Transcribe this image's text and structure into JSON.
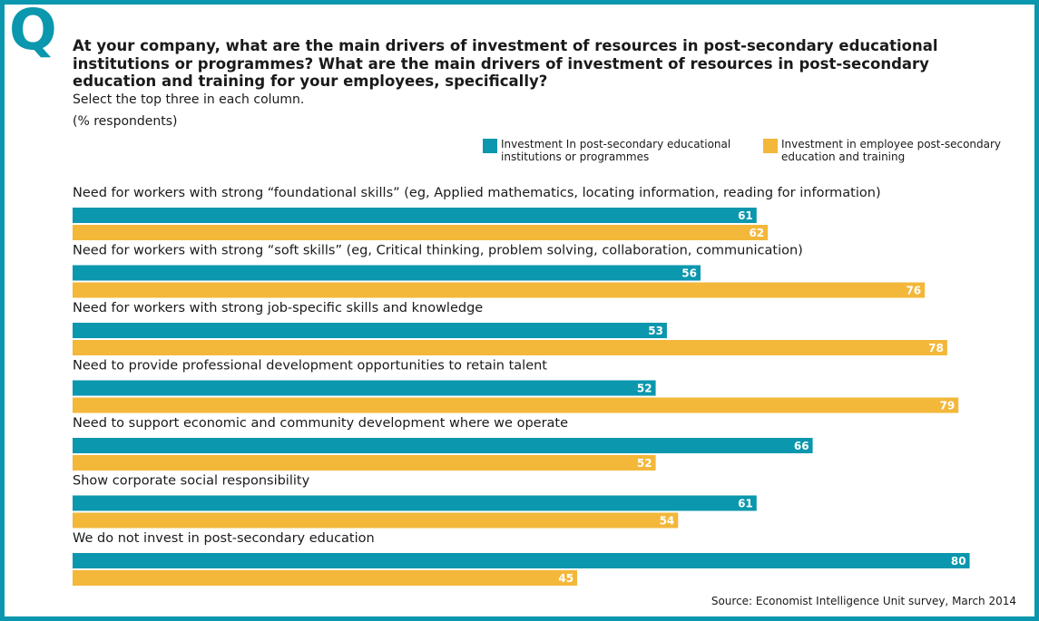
{
  "header": {
    "q_mark": "Q",
    "question": "At your company, what are the main drivers of investment of resources in post-secondary educational institutions or programmes? What are the main drivers of investment of resources in post-secondary education and training for your employees, specifically?",
    "instruction": "Select the top three in each column.",
    "unit": "(% respondents)"
  },
  "colors": {
    "frame": "#0b97ad",
    "series1": "#0b97ad",
    "series2": "#f3b73a"
  },
  "source": "Source: Economist Intelligence Unit survey, March 2014",
  "chart_data": {
    "type": "bar",
    "orientation": "horizontal",
    "categories": [
      "Need for workers with strong “foundational skills” (eg, Applied mathematics, locating information, reading for information)",
      "Need for workers with strong “soft skills” (eg, Critical thinking, problem solving, collaboration, communication)",
      "Need for workers with strong job-specific skills and knowledge",
      "Need to provide professional development opportunities to retain talent",
      "Need to support economic and community development where we operate",
      "Show corporate social responsibility",
      "We do not invest in post-secondary education"
    ],
    "series": [
      {
        "name": "Investment In post-secondary educational institutions or programmes",
        "values": [
          61,
          56,
          53,
          52,
          66,
          61,
          80
        ]
      },
      {
        "name": "Investment in employee post-secondary education and training",
        "values": [
          62,
          76,
          78,
          79,
          52,
          54,
          45
        ]
      }
    ],
    "xlim": [
      0,
      84
    ],
    "legend_position": "top-right",
    "grid": false
  }
}
